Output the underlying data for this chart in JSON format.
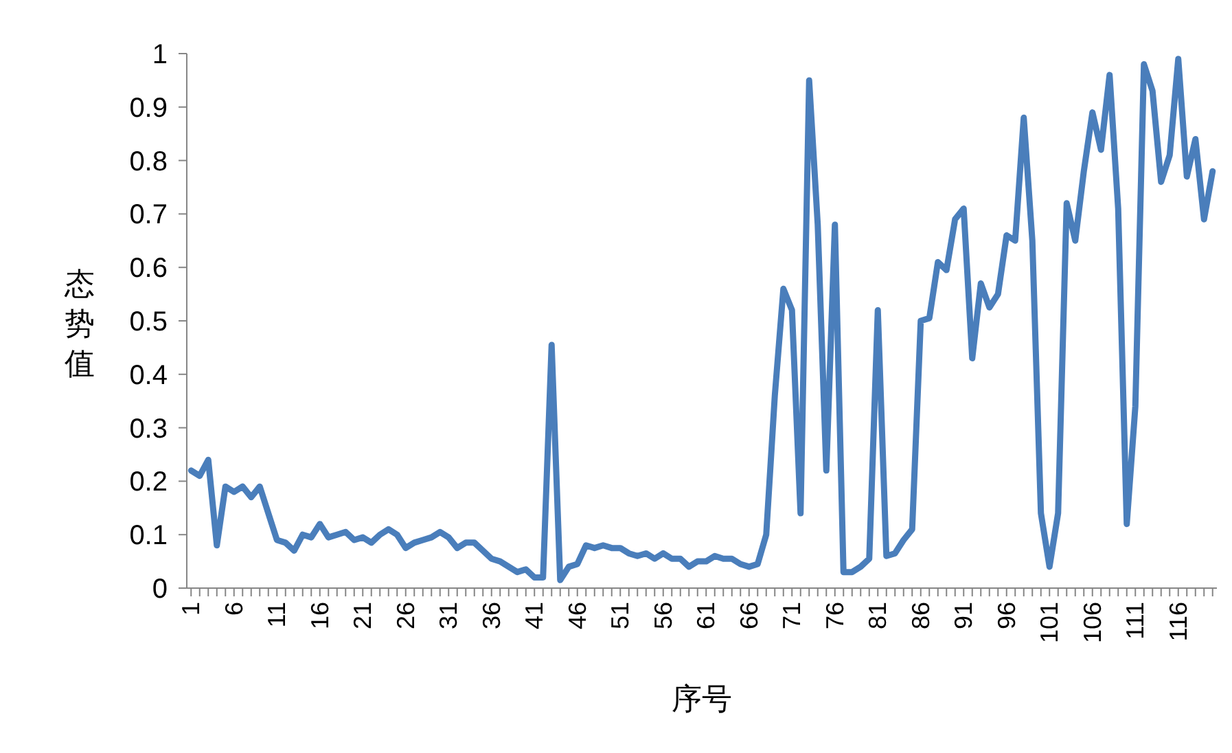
{
  "chart_data": {
    "type": "line",
    "xlabel": "序号",
    "ylabel": "态势值",
    "x": [
      1,
      2,
      3,
      4,
      5,
      6,
      7,
      8,
      9,
      10,
      11,
      12,
      13,
      14,
      15,
      16,
      17,
      18,
      19,
      20,
      21,
      22,
      23,
      24,
      25,
      26,
      27,
      28,
      29,
      30,
      31,
      32,
      33,
      34,
      35,
      36,
      37,
      38,
      39,
      40,
      41,
      42,
      43,
      44,
      45,
      46,
      47,
      48,
      49,
      50,
      51,
      52,
      53,
      54,
      55,
      56,
      57,
      58,
      59,
      60,
      61,
      62,
      63,
      64,
      65,
      66,
      67,
      68,
      69,
      70,
      71,
      72,
      73,
      74,
      75,
      76,
      77,
      78,
      79,
      80,
      81,
      82,
      83,
      84,
      85,
      86,
      87,
      88,
      89,
      90,
      91,
      92,
      93,
      94,
      95,
      96,
      97,
      98,
      99,
      100,
      101,
      102,
      103,
      104,
      105,
      106,
      107,
      108,
      109,
      110,
      111,
      112,
      113,
      114,
      115,
      116,
      117,
      118,
      119,
      120
    ],
    "series": [
      {
        "color": "#4a7ebb",
        "values": [
          0.22,
          0.21,
          0.24,
          0.08,
          0.19,
          0.18,
          0.19,
          0.17,
          0.19,
          0.14,
          0.09,
          0.085,
          0.07,
          0.1,
          0.095,
          0.12,
          0.095,
          0.1,
          0.105,
          0.09,
          0.095,
          0.085,
          0.1,
          0.11,
          0.1,
          0.075,
          0.085,
          0.09,
          0.095,
          0.105,
          0.095,
          0.075,
          0.085,
          0.085,
          0.07,
          0.055,
          0.05,
          0.04,
          0.03,
          0.035,
          0.02,
          0.02,
          0.455,
          0.015,
          0.04,
          0.045,
          0.08,
          0.075,
          0.08,
          0.075,
          0.075,
          0.065,
          0.06,
          0.065,
          0.055,
          0.065,
          0.055,
          0.055,
          0.04,
          0.05,
          0.05,
          0.06,
          0.055,
          0.055,
          0.045,
          0.04,
          0.045,
          0.1,
          0.36,
          0.56,
          0.52,
          0.14,
          0.95,
          0.68,
          0.22,
          0.68,
          0.03,
          0.03,
          0.04,
          0.055,
          0.52,
          0.06,
          0.065,
          0.09,
          0.11,
          0.5,
          0.505,
          0.61,
          0.595,
          0.69,
          0.71,
          0.43,
          0.57,
          0.525,
          0.55,
          0.66,
          0.65,
          0.88,
          0.65,
          0.14,
          0.04,
          0.14,
          0.72,
          0.65,
          0.78,
          0.89,
          0.82,
          0.96,
          0.71,
          0.12,
          0.34,
          0.98,
          0.93,
          0.76,
          0.81,
          0.99,
          0.77,
          0.84,
          0.69,
          0.78
        ]
      }
    ],
    "xlim": [
      0.5,
      120.5
    ],
    "xticks": [
      1,
      {
        "value": 2,
        "label": null
      },
      {
        "value": 3,
        "label": null
      },
      {
        "value": 4,
        "label": null
      },
      {
        "value": 5,
        "label": null
      },
      6,
      {
        "value": 7,
        "label": null
      },
      {
        "value": 8,
        "label": null
      },
      {
        "value": 9,
        "label": null
      },
      {
        "value": 10,
        "label": null
      },
      11,
      {
        "value": 12,
        "label": null
      },
      {
        "value": 13,
        "label": null
      },
      {
        "value": 14,
        "label": null
      },
      {
        "value": 15,
        "label": null
      },
      16,
      {
        "value": 17,
        "label": null
      },
      {
        "value": 18,
        "label": null
      },
      {
        "value": 19,
        "label": null
      },
      {
        "value": 20,
        "label": null
      },
      21,
      {
        "value": 22,
        "label": null
      },
      {
        "value": 23,
        "label": null
      },
      {
        "value": 24,
        "label": null
      },
      {
        "value": 25,
        "label": null
      },
      26,
      {
        "value": 27,
        "label": null
      },
      {
        "value": 28,
        "label": null
      },
      {
        "value": 29,
        "label": null
      },
      {
        "value": 30,
        "label": null
      },
      31,
      {
        "value": 32,
        "label": null
      },
      {
        "value": 33,
        "label": null
      },
      {
        "value": 34,
        "label": null
      },
      {
        "value": 35,
        "label": null
      },
      36,
      {
        "value": 37,
        "label": null
      },
      {
        "value": 38,
        "label": null
      },
      {
        "value": 39,
        "label": null
      },
      {
        "value": 40,
        "label": null
      },
      41,
      {
        "value": 42,
        "label": null
      },
      {
        "value": 43,
        "label": null
      },
      {
        "value": 44,
        "label": null
      },
      {
        "value": 45,
        "label": null
      },
      46,
      {
        "value": 47,
        "label": null
      },
      {
        "value": 48,
        "label": null
      },
      {
        "value": 49,
        "label": null
      },
      {
        "value": 50,
        "label": null
      },
      51,
      {
        "value": 52,
        "label": null
      },
      {
        "value": 53,
        "label": null
      },
      {
        "value": 54,
        "label": null
      },
      {
        "value": 55,
        "label": null
      },
      56,
      {
        "value": 57,
        "label": null
      },
      {
        "value": 58,
        "label": null
      },
      {
        "value": 59,
        "label": null
      },
      {
        "value": 60,
        "label": null
      },
      61,
      {
        "value": 62,
        "label": null
      },
      {
        "value": 63,
        "label": null
      },
      {
        "value": 64,
        "label": null
      },
      {
        "value": 65,
        "label": null
      },
      66,
      {
        "value": 67,
        "label": null
      },
      {
        "value": 68,
        "label": null
      },
      {
        "value": 69,
        "label": null
      },
      {
        "value": 70,
        "label": null
      },
      71,
      {
        "value": 72,
        "label": null
      },
      {
        "value": 73,
        "label": null
      },
      {
        "value": 74,
        "label": null
      },
      {
        "value": 75,
        "label": null
      },
      76,
      {
        "value": 77,
        "label": null
      },
      {
        "value": 78,
        "label": null
      },
      {
        "value": 79,
        "label": null
      },
      {
        "value": 80,
        "label": null
      },
      81,
      {
        "value": 82,
        "label": null
      },
      {
        "value": 83,
        "label": null
      },
      {
        "value": 84,
        "label": null
      },
      {
        "value": 85,
        "label": null
      },
      86,
      {
        "value": 87,
        "label": null
      },
      {
        "value": 88,
        "label": null
      },
      {
        "value": 89,
        "label": null
      },
      {
        "value": 90,
        "label": null
      },
      91,
      {
        "value": 92,
        "label": null
      },
      {
        "value": 93,
        "label": null
      },
      {
        "value": 94,
        "label": null
      },
      {
        "value": 95,
        "label": null
      },
      96,
      {
        "value": 97,
        "label": null
      },
      {
        "value": 98,
        "label": null
      },
      {
        "value": 99,
        "label": null
      },
      {
        "value": 100,
        "label": null
      },
      101,
      {
        "value": 102,
        "label": null
      },
      {
        "value": 103,
        "label": null
      },
      {
        "value": 104,
        "label": null
      },
      {
        "value": 105,
        "label": null
      },
      106,
      {
        "value": 107,
        "label": null
      },
      {
        "value": 108,
        "label": null
      },
      {
        "value": 109,
        "label": null
      },
      {
        "value": 110,
        "label": null
      },
      111,
      {
        "value": 112,
        "label": null
      },
      {
        "value": 113,
        "label": null
      },
      {
        "value": 114,
        "label": null
      },
      {
        "value": 115,
        "label": null
      },
      116,
      {
        "value": 117,
        "label": null
      },
      {
        "value": 118,
        "label": null
      },
      {
        "value": 119,
        "label": null
      },
      {
        "value": 120,
        "label": null
      }
    ],
    "ylim": [
      0,
      1
    ],
    "yticks": [
      0,
      0.1,
      0.2,
      0.3,
      0.4,
      0.5,
      0.6,
      0.7,
      0.8,
      0.9,
      1
    ],
    "grid": false,
    "marker": "none",
    "line_style": "solid"
  }
}
